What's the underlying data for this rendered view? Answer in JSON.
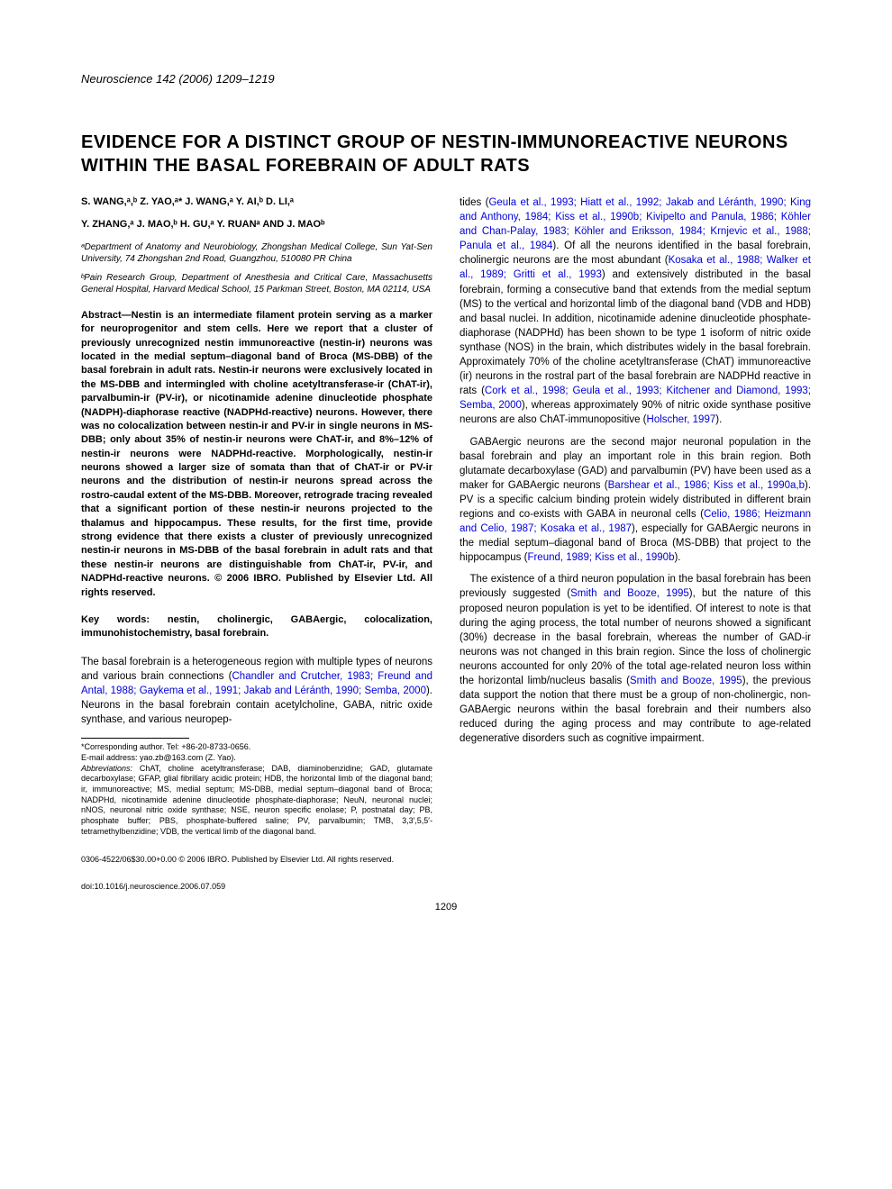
{
  "journal_header": "Neuroscience 142 (2006) 1209–1219",
  "title": "EVIDENCE FOR A DISTINCT GROUP OF NESTIN-IMMUNOREACTIVE NEURONS WITHIN THE BASAL FOREBRAIN OF ADULT RATS",
  "authors_line1": "S. WANG,ᵃ,ᵇ Z. YAO,ᵃ* J. WANG,ᵃ Y. AI,ᵇ D. LI,ᵃ",
  "authors_line2": "Y. ZHANG,ᵃ J. MAO,ᵇ H. GU,ᵃ Y. RUANᵃ AND J. MAOᵇ",
  "affiliation_a": "ᵃDepartment of Anatomy and Neurobiology, Zhongshan Medical College, Sun Yat-Sen University, 74 Zhongshan 2nd Road, Guangzhou, 510080 PR China",
  "affiliation_b": "ᵇPain Research Group, Department of Anesthesia and Critical Care, Massachusetts General Hospital, Harvard Medical School, 15 Parkman Street, Boston, MA 02114, USA",
  "abstract": "Abstract—Nestin is an intermediate filament protein serving as a marker for neuroprogenitor and stem cells. Here we report that a cluster of previously unrecognized nestin immunoreactive (nestin-ir) neurons was located in the medial septum–diagonal band of Broca (MS-DBB) of the basal forebrain in adult rats. Nestin-ir neurons were exclusively located in the MS-DBB and intermingled with choline acetyltransferase-ir (ChAT-ir), parvalbumin-ir (PV-ir), or nicotinamide adenine dinucleotide phosphate (NADPH)-diaphorase reactive (NADPHd-reactive) neurons. However, there was no colocalization between nestin-ir and PV-ir in single neurons in MS-DBB; only about 35% of nestin-ir neurons were ChAT-ir, and 8%–12% of nestin-ir neurons were NADPHd-reactive. Morphologically, nestin-ir neurons showed a larger size of somata than that of ChAT-ir or PV-ir neurons and the distribution of nestin-ir neurons spread across the rostro-caudal extent of the MS-DBB. Moreover, retrograde tracing revealed that a significant portion of these nestin-ir neurons projected to the thalamus and hippocampus. These results, for the first time, provide strong evidence that there exists a cluster of previously unrecognized nestin-ir neurons in MS-DBB of the basal forebrain in adult rats and that these nestin-ir neurons are distinguishable from ChAT-ir, PV-ir, and NADPHd-reactive neurons. © 2006 IBRO. Published by Elsevier Ltd. All rights reserved.",
  "keywords": "Key words: nestin, cholinergic, GABAergic, colocalization, immunohistochemistry, basal forebrain.",
  "left_para1_a": "The basal forebrain is a heterogeneous region with multiple types of neurons and various brain connections (",
  "left_para1_link1": "Chandler and Crutcher, 1983; Freund and Antal, 1988; Gaykema et al., 1991; Jakab and Léránth, 1990; Semba, 2000",
  "left_para1_b": "). Neurons in the basal forebrain contain acetylcholine, GABA, nitric oxide synthase, and various neuropep-",
  "footnote_corr": "*Corresponding author. Tel: +86-20-8733-0656.",
  "footnote_email": "E-mail address: yao.zb@163.com (Z. Yao).",
  "footnote_abbrev": "Abbreviations: ChAT, choline acetyltransferase; DAB, diaminobenzidine; GAD, glutamate decarboxylase; GFAP, glial fibrillary acidic protein; HDB, the horizontal limb of the diagonal band; ir, immunoreactive; MS, medial septum; MS-DBB, medial septum–diagonal band of Broca; NADPHd, nicotinamide adenine dinucleotide phosphate-diaphorase; NeuN, neuronal nuclei; nNOS, neuronal nitric oxide synthase; NSE, neuron specific enolase; P, postnatal day; PB, phosphate buffer; PBS, phosphate-buffered saline; PV, parvalbumin; TMB, 3,3′,5,5′-tetramethylbenzidine; VDB, the vertical limb of the diagonal band.",
  "right_para1_a": "tides (",
  "right_para1_link1": "Geula et al., 1993; Hiatt et al., 1992; Jakab and Léránth, 1990; King and Anthony, 1984; Kiss et al., 1990b; Kivipelto and Panula, 1986; Köhler and Chan-Palay, 1983; Köhler and Eriksson, 1984; Krnjevic et al., 1988; Panula et al., 1984",
  "right_para1_b": "). Of all the neurons identified in the basal forebrain, cholinergic neurons are the most abundant (",
  "right_para1_link2": "Kosaka et al., 1988; Walker et al., 1989; Gritti et al., 1993",
  "right_para1_c": ") and extensively distributed in the basal forebrain, forming a consecutive band that extends from the medial septum (MS) to the vertical and horizontal limb of the diagonal band (VDB and HDB) and basal nuclei. In addition, nicotinamide adenine dinucleotide phosphate-diaphorase (NADPHd) has been shown to be type 1 isoform of nitric oxide synthase (NOS) in the brain, which distributes widely in the basal forebrain. Approximately 70% of the choline acetyltransferase (ChAT) immunoreactive (ir) neurons in the rostral part of the basal forebrain are NADPHd reactive in rats (",
  "right_para1_link3": "Cork et al., 1998; Geula et al., 1993; Kitchener and Diamond, 1993; Semba, 2000",
  "right_para1_d": "), whereas approximately 90% of nitric oxide synthase positive neurons are also ChAT-immunopositive (",
  "right_para1_link4": "Holscher, 1997",
  "right_para1_e": ").",
  "right_para2_a": "GABAergic neurons are the second major neuronal population in the basal forebrain and play an important role in this brain region. Both glutamate decarboxylase (GAD) and parvalbumin (PV) have been used as a maker for GABAergic neurons (",
  "right_para2_link1": "Barshear et al., 1986; Kiss et al., 1990a,b",
  "right_para2_b": "). PV is a specific calcium binding protein widely distributed in different brain regions and co-exists with GABA in neuronal cells (",
  "right_para2_link2": "Celio, 1986; Heizmann and Celio, 1987; Kosaka et al., 1987",
  "right_para2_c": "), especially for GABAergic neurons in the medial septum–diagonal band of Broca (MS-DBB) that project to the hippocampus (",
  "right_para2_link3": "Freund, 1989; Kiss et al., 1990b",
  "right_para2_d": ").",
  "right_para3_a": "The existence of a third neuron population in the basal forebrain has been previously suggested (",
  "right_para3_link1": "Smith and Booze, 1995",
  "right_para3_b": "), but the nature of this proposed neuron population is yet to be identified. Of interest to note is that during the aging process, the total number of neurons showed a significant (30%) decrease in the basal forebrain, whereas the number of GAD-ir neurons was not changed in this brain region. Since the loss of cholinergic neurons accounted for only 20% of the total age-related neuron loss within the horizontal limb/nucleus basalis (",
  "right_para3_link2": "Smith and Booze, 1995",
  "right_para3_c": "), the previous data support the notion that there must be a group of non-cholinergic, non-GABAergic neurons within the basal forebrain and their numbers also reduced during the aging process and may contribute to age-related degenerative disorders such as cognitive impairment.",
  "copyright": "0306-4522/06$30.00+0.00 © 2006 IBRO. Published by Elsevier Ltd. All rights reserved.",
  "doi": "doi:10.1016/j.neuroscience.2006.07.059",
  "page_number": "1209"
}
